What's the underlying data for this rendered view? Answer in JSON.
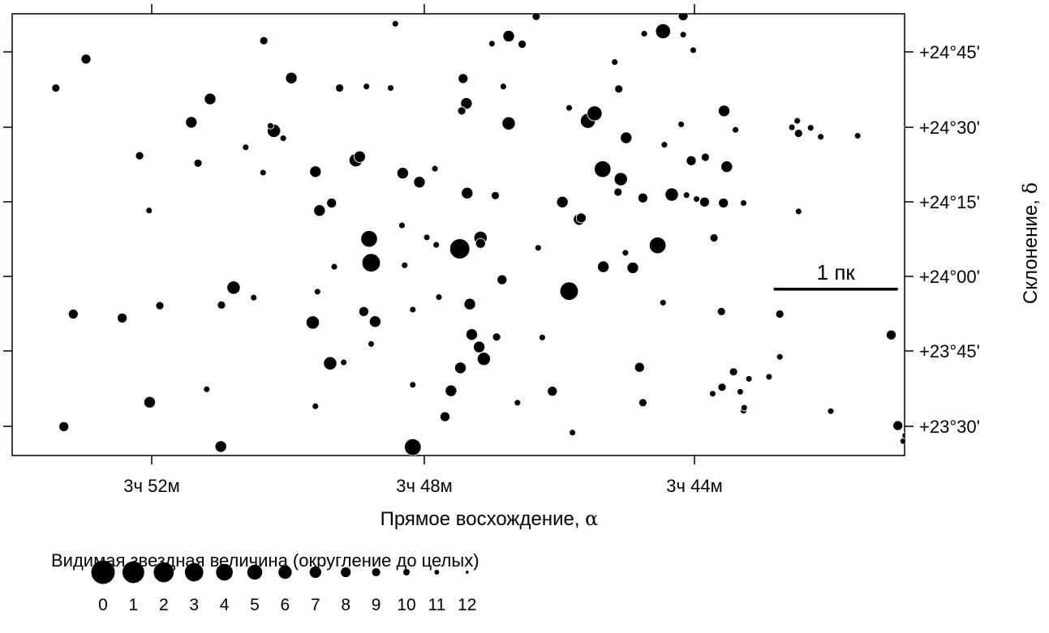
{
  "chart_data": {
    "type": "scatter",
    "xlabel": "Прямое восхождение,",
    "xlabel_symbol": "α",
    "ylabel": "Склонение,",
    "ylabel_symbol": "δ",
    "x_ticks": [
      {
        "value": 52,
        "label": "3ч 52м"
      },
      {
        "value": 48,
        "label": "3ч 48м"
      },
      {
        "value": 44,
        "label": "3ч 44м"
      }
    ],
    "y_ticks": [
      {
        "value": 45,
        "label": "+24°45'"
      },
      {
        "value": 30,
        "label": "+24°30'"
      },
      {
        "value": 15,
        "label": "+24°15'"
      },
      {
        "value": 0,
        "label": "+24°00'"
      },
      {
        "value": -15,
        "label": "+23°45'"
      },
      {
        "value": -30,
        "label": "+23°30'"
      }
    ],
    "x_unit": "minutes of RA past 3h (axis reversed)",
    "y_unit": "arcminutes from +24°00'",
    "xlim": [
      54.1,
      40.8
    ],
    "ylim": [
      -36.2,
      52.5
    ],
    "grid": false,
    "scale_bar": {
      "label": "1 пк",
      "x_start": 42.75,
      "x_end": 40.9,
      "y": -2.8
    },
    "legend": {
      "title": "Видимая звездная величина (округление до целых)",
      "magnitudes": [
        "0",
        "1",
        "2",
        "3",
        "4",
        "5",
        "6",
        "7",
        "8",
        "9",
        "10",
        "11",
        "12"
      ]
    },
    "color": "#000000",
    "stars": [
      {
        "x": 53.45,
        "y": 37.6,
        "mag": 9
      },
      {
        "x": 53.0,
        "y": 43.4,
        "mag": 8
      },
      {
        "x": 53.33,
        "y": -30.4,
        "mag": 8
      },
      {
        "x": 53.19,
        "y": -7.8,
        "mag": 8
      },
      {
        "x": 52.46,
        "y": -8.6,
        "mag": 8
      },
      {
        "x": 52.2,
        "y": 24.0,
        "mag": 9
      },
      {
        "x": 52.06,
        "y": 13.0,
        "mag": 10
      },
      {
        "x": 52.05,
        "y": -25.5,
        "mag": 7
      },
      {
        "x": 51.9,
        "y": -6.1,
        "mag": 9
      },
      {
        "x": 51.43,
        "y": 30.7,
        "mag": 7
      },
      {
        "x": 51.33,
        "y": 22.5,
        "mag": 9
      },
      {
        "x": 51.2,
        "y": -22.9,
        "mag": 10
      },
      {
        "x": 51.15,
        "y": 35.4,
        "mag": 7
      },
      {
        "x": 50.99,
        "y": -34.4,
        "mag": 7
      },
      {
        "x": 50.98,
        "y": -6.0,
        "mag": 9
      },
      {
        "x": 50.8,
        "y": -2.5,
        "mag": 6
      },
      {
        "x": 50.62,
        "y": 25.7,
        "mag": 10
      },
      {
        "x": 50.5,
        "y": -4.5,
        "mag": 10
      },
      {
        "x": 50.35,
        "y": 47.1,
        "mag": 9
      },
      {
        "x": 50.36,
        "y": 20.6,
        "mag": 10
      },
      {
        "x": 50.25,
        "y": 30.0,
        "mag": 10
      },
      {
        "x": 50.2,
        "y": 29.0,
        "mag": 6
      },
      {
        "x": 50.06,
        "y": 27.5,
        "mag": 10
      },
      {
        "x": 49.94,
        "y": 39.6,
        "mag": 7
      },
      {
        "x": 49.58,
        "y": 20.8,
        "mag": 7
      },
      {
        "x": 49.52,
        "y": 13.0,
        "mag": 7
      },
      {
        "x": 49.55,
        "y": -3.3,
        "mag": 10
      },
      {
        "x": 49.58,
        "y": -26.3,
        "mag": 10
      },
      {
        "x": 49.62,
        "y": -9.5,
        "mag": 6
      },
      {
        "x": 49.34,
        "y": 14.5,
        "mag": 8
      },
      {
        "x": 49.36,
        "y": -17.7,
        "mag": 6
      },
      {
        "x": 49.3,
        "y": 1.7,
        "mag": 10
      },
      {
        "x": 49.22,
        "y": 37.6,
        "mag": 9
      },
      {
        "x": 49.16,
        "y": -17.5,
        "mag": 10
      },
      {
        "x": 48.98,
        "y": 23.1,
        "mag": 6
      },
      {
        "x": 48.92,
        "y": 23.8,
        "mag": 7
      },
      {
        "x": 48.82,
        "y": 37.9,
        "mag": 10
      },
      {
        "x": 48.86,
        "y": -7.3,
        "mag": 8
      },
      {
        "x": 48.78,
        "y": 7.3,
        "mag": 4
      },
      {
        "x": 48.75,
        "y": 2.5,
        "mag": 3
      },
      {
        "x": 48.75,
        "y": -13.8,
        "mag": 10
      },
      {
        "x": 48.69,
        "y": -9.3,
        "mag": 7
      },
      {
        "x": 48.46,
        "y": 37.6,
        "mag": 10
      },
      {
        "x": 48.39,
        "y": 50.5,
        "mag": 10
      },
      {
        "x": 48.28,
        "y": 20.5,
        "mag": 7
      },
      {
        "x": 48.29,
        "y": 10.0,
        "mag": 10
      },
      {
        "x": 48.25,
        "y": 2.0,
        "mag": 10
      },
      {
        "x": 48.13,
        "y": -34.5,
        "mag": 4
      },
      {
        "x": 48.13,
        "y": -6.9,
        "mag": 10
      },
      {
        "x": 48.13,
        "y": -22.0,
        "mag": 10
      },
      {
        "x": 48.03,
        "y": 18.7,
        "mag": 7
      },
      {
        "x": 47.92,
        "y": 7.6,
        "mag": 10
      },
      {
        "x": 47.78,
        "y": 6.1,
        "mag": 10
      },
      {
        "x": 47.8,
        "y": 21.4,
        "mag": 10
      },
      {
        "x": 47.74,
        "y": -4.4,
        "mag": 10
      },
      {
        "x": 47.65,
        "y": -28.4,
        "mag": 8
      },
      {
        "x": 47.56,
        "y": -23.2,
        "mag": 7
      },
      {
        "x": 47.38,
        "y": 39.5,
        "mag": 8
      },
      {
        "x": 47.4,
        "y": 33.0,
        "mag": 9
      },
      {
        "x": 47.33,
        "y": 34.5,
        "mag": 7
      },
      {
        "x": 47.32,
        "y": 16.5,
        "mag": 7
      },
      {
        "x": 47.28,
        "y": -5.8,
        "mag": 7
      },
      {
        "x": 47.25,
        "y": -11.9,
        "mag": 7
      },
      {
        "x": 47.14,
        "y": -14.4,
        "mag": 7
      },
      {
        "x": 47.43,
        "y": 5.3,
        "mag": 2
      },
      {
        "x": 47.12,
        "y": 7.5,
        "mag": 6
      },
      {
        "x": 47.12,
        "y": 6.4,
        "mag": 8
      },
      {
        "x": 47.42,
        "y": -18.6,
        "mag": 7
      },
      {
        "x": 47.07,
        "y": -16.8,
        "mag": 6
      },
      {
        "x": 46.95,
        "y": 46.5,
        "mag": 10
      },
      {
        "x": 46.9,
        "y": 16.0,
        "mag": 9
      },
      {
        "x": 46.88,
        "y": -12.4,
        "mag": 9
      },
      {
        "x": 46.8,
        "y": -0.9,
        "mag": 8
      },
      {
        "x": 46.78,
        "y": 37.9,
        "mag": 10
      },
      {
        "x": 46.7,
        "y": 48.0,
        "mag": 7
      },
      {
        "x": 46.7,
        "y": 30.5,
        "mag": 6
      },
      {
        "x": 46.57,
        "y": -25.6,
        "mag": 10
      },
      {
        "x": 46.5,
        "y": 46.4,
        "mag": 9
      },
      {
        "x": 46.29,
        "y": 52.0,
        "mag": 9
      },
      {
        "x": 46.26,
        "y": 5.5,
        "mag": 10
      },
      {
        "x": 46.2,
        "y": -12.5,
        "mag": 10
      },
      {
        "x": 46.05,
        "y": -23.3,
        "mag": 8
      },
      {
        "x": 45.9,
        "y": 14.7,
        "mag": 7
      },
      {
        "x": 45.8,
        "y": 33.6,
        "mag": 10
      },
      {
        "x": 45.8,
        "y": -3.2,
        "mag": 3
      },
      {
        "x": 45.75,
        "y": -31.6,
        "mag": 10
      },
      {
        "x": 45.65,
        "y": 11.2,
        "mag": 7
      },
      {
        "x": 45.62,
        "y": 11.5,
        "mag": 8
      },
      {
        "x": 45.52,
        "y": 31.0,
        "mag": 5
      },
      {
        "x": 45.42,
        "y": 32.5,
        "mag": 5
      },
      {
        "x": 45.3,
        "y": 21.3,
        "mag": 4
      },
      {
        "x": 45.29,
        "y": 1.7,
        "mag": 7
      },
      {
        "x": 45.12,
        "y": 42.8,
        "mag": 10
      },
      {
        "x": 45.06,
        "y": 37.4,
        "mag": 9
      },
      {
        "x": 45.07,
        "y": 16.7,
        "mag": 9
      },
      {
        "x": 45.03,
        "y": 19.3,
        "mag": 6
      },
      {
        "x": 44.96,
        "y": 4.5,
        "mag": 10
      },
      {
        "x": 44.95,
        "y": 27.6,
        "mag": 7
      },
      {
        "x": 44.85,
        "y": 1.5,
        "mag": 7
      },
      {
        "x": 44.75,
        "y": -18.5,
        "mag": 8
      },
      {
        "x": 44.68,
        "y": 48.5,
        "mag": 10
      },
      {
        "x": 44.7,
        "y": 15.5,
        "mag": 8
      },
      {
        "x": 44.7,
        "y": -25.6,
        "mag": 9
      },
      {
        "x": 44.48,
        "y": 6.0,
        "mag": 4
      },
      {
        "x": 44.4,
        "y": -5.5,
        "mag": 10
      },
      {
        "x": 44.38,
        "y": 26.2,
        "mag": 10
      },
      {
        "x": 44.4,
        "y": 49.0,
        "mag": 5
      },
      {
        "x": 44.1,
        "y": 48.3,
        "mag": 10
      },
      {
        "x": 44.27,
        "y": 16.2,
        "mag": 6
      },
      {
        "x": 44.1,
        "y": 52.1,
        "mag": 8
      },
      {
        "x": 44.05,
        "y": 16.1,
        "mag": 10
      },
      {
        "x": 43.95,
        "y": 45.2,
        "mag": 10
      },
      {
        "x": 44.13,
        "y": 30.3,
        "mag": 10
      },
      {
        "x": 43.98,
        "y": 23.0,
        "mag": 8
      },
      {
        "x": 43.77,
        "y": 23.7,
        "mag": 9
      },
      {
        "x": 43.9,
        "y": 15.3,
        "mag": 10
      },
      {
        "x": 43.78,
        "y": 14.7,
        "mag": 8
      },
      {
        "x": 43.64,
        "y": 7.5,
        "mag": 9
      },
      {
        "x": 43.66,
        "y": -23.8,
        "mag": 10
      },
      {
        "x": 43.32,
        "y": 29.2,
        "mag": 10
      },
      {
        "x": 43.5,
        "y": 14.5,
        "mag": 8
      },
      {
        "x": 43.49,
        "y": 33.0,
        "mag": 7
      },
      {
        "x": 43.45,
        "y": 21.8,
        "mag": 7
      },
      {
        "x": 43.53,
        "y": -7.3,
        "mag": 9
      },
      {
        "x": 43.52,
        "y": -22.5,
        "mag": 9
      },
      {
        "x": 43.2,
        "y": -27.2,
        "mag": 10
      },
      {
        "x": 43.2,
        "y": 14.5,
        "mag": 10
      },
      {
        "x": 43.19,
        "y": -26.6,
        "mag": 10
      },
      {
        "x": 43.25,
        "y": -23.4,
        "mag": 10
      },
      {
        "x": 43.35,
        "y": -19.4,
        "mag": 9
      },
      {
        "x": 43.12,
        "y": -20.8,
        "mag": 10
      },
      {
        "x": 42.82,
        "y": -20.4,
        "mag": 10
      },
      {
        "x": 42.66,
        "y": -16.4,
        "mag": 10
      },
      {
        "x": 42.66,
        "y": -7.8,
        "mag": 9
      },
      {
        "x": 42.48,
        "y": 29.7,
        "mag": 10
      },
      {
        "x": 42.4,
        "y": 31.0,
        "mag": 10
      },
      {
        "x": 42.38,
        "y": 12.8,
        "mag": 10
      },
      {
        "x": 42.38,
        "y": 28.5,
        "mag": 9
      },
      {
        "x": 42.2,
        "y": 29.6,
        "mag": 10
      },
      {
        "x": 42.05,
        "y": 27.8,
        "mag": 10
      },
      {
        "x": 41.9,
        "y": -27.3,
        "mag": 10
      },
      {
        "x": 41.5,
        "y": 28.0,
        "mag": 10
      },
      {
        "x": 41.0,
        "y": -12.0,
        "mag": 8
      },
      {
        "x": 40.9,
        "y": -30.2,
        "mag": 8
      },
      {
        "x": 40.82,
        "y": -33.3,
        "mag": 10
      },
      {
        "x": 40.74,
        "y": 29.7,
        "mag": 9
      },
      {
        "x": 40.79,
        "y": -32.2,
        "mag": 10
      }
    ]
  }
}
